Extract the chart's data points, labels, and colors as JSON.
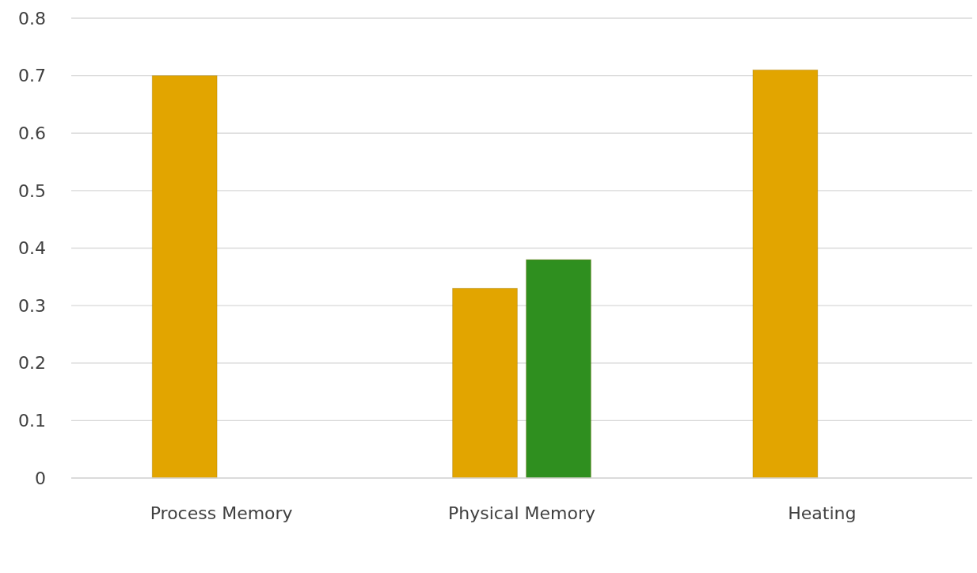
{
  "chart_data": {
    "type": "bar",
    "categories": [
      "Process Memory",
      "Physical Memory",
      "Heating"
    ],
    "series": [
      {
        "color": "#e2a500",
        "values": [
          0.7,
          0.33,
          0.71
        ]
      },
      {
        "color": "#2f8f1f",
        "values": [
          null,
          0.38,
          null
        ]
      }
    ],
    "ylim": [
      0,
      0.8
    ],
    "yticks": [
      0,
      0.1,
      0.2,
      0.3,
      0.4,
      0.5,
      0.6,
      0.7,
      0.8
    ],
    "grid": "y",
    "legend": false
  }
}
